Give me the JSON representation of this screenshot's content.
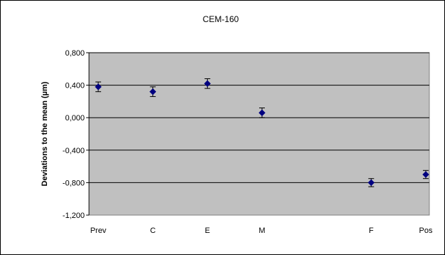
{
  "chart_data": {
    "type": "scatter",
    "title": "CEM-160",
    "xlabel": "",
    "ylabel": "Deviations to the mean (µm)",
    "ylim": [
      -1.2,
      0.8
    ],
    "y_ticks": [
      "0,800",
      "0,400",
      "0,000",
      "-0,400",
      "-0,800",
      "-1,200"
    ],
    "y_tick_values": [
      0.8,
      0.4,
      0.0,
      -0.4,
      -0.8,
      -1.2
    ],
    "x_tick_labels": [
      "Prev",
      "C",
      "E",
      "M",
      "F",
      "Pos"
    ],
    "x_ticks_at": [
      0,
      1,
      2,
      3,
      5,
      6
    ],
    "xlim": [
      0,
      6
    ],
    "grid": "horizontal",
    "colors": {
      "plot_bg": "#c0c0c0",
      "marker": "#000080",
      "grid": "#000000"
    },
    "series": [
      {
        "points": [
          {
            "label": "Prev",
            "x": 0,
            "y": 0.38,
            "err": 0.06
          },
          {
            "label": "C",
            "x": 1,
            "y": 0.32,
            "err": 0.06
          },
          {
            "label": "E",
            "x": 2,
            "y": 0.42,
            "err": 0.06
          },
          {
            "label": "M",
            "x": 3,
            "y": 0.06,
            "err": 0.06
          },
          {
            "label": "F",
            "x": 5,
            "y": -0.8,
            "err": 0.05
          },
          {
            "label": "Pos",
            "x": 6,
            "y": -0.7,
            "err": 0.05
          }
        ]
      }
    ]
  }
}
